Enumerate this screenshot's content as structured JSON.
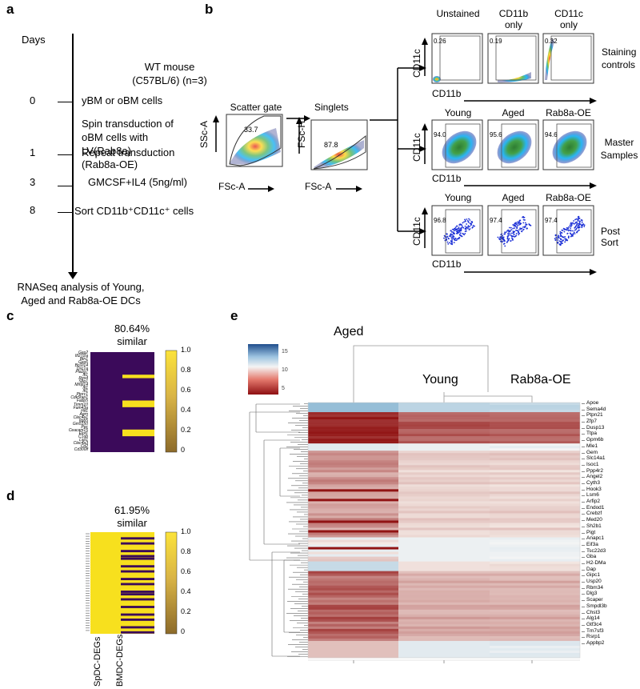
{
  "panel_labels": {
    "a": "a",
    "b": "b",
    "c": "c",
    "d": "d",
    "e": "e"
  },
  "panel_a": {
    "days_title": "Days",
    "timeline": [
      {
        "day": "",
        "text": "WT mouse\n(C57BL/6) (n=3)"
      },
      {
        "day": "0",
        "text": "yBM or oBM cells"
      },
      {
        "day": "",
        "text": "Spin transduction  of\noBM cells with\nLV(Rab8a)\n(Rab8a-OE)"
      },
      {
        "day": "1",
        "text": "Repeat transduction"
      },
      {
        "day": "3",
        "text": "GMCSF+IL4 (5ng/ml)"
      },
      {
        "day": "8",
        "text": "Sort CD11b⁺CD11c⁺ cells"
      }
    ],
    "footer": "RNASeq analysis of Young,\nAged and Rab8a-OE DCs"
  },
  "panel_b": {
    "scatter_gate": {
      "title": "Scatter gate",
      "value": "33.7",
      "ylabel": "SSc-A",
      "xlabel": "FSc-A"
    },
    "singlets": {
      "title": "Singlets",
      "value": "87.8",
      "ylabel": "FSc-H",
      "xlabel": "FSc-A"
    },
    "rows": [
      {
        "name": "Staining\ncontrols",
        "titles": [
          "Unstained",
          "CD11b\nonly",
          "CD11c\nonly"
        ],
        "values": [
          "0.26",
          "0.19",
          "0.32"
        ],
        "ylabel": "CD11c",
        "xlabel": "CD11b"
      },
      {
        "name": "Master\nSamples",
        "titles": [
          "Young",
          "Aged",
          "Rab8a-OE"
        ],
        "values": [
          "94.0",
          "95.6",
          "94.6"
        ],
        "ylabel": "CD11c",
        "xlabel": "CD11b"
      },
      {
        "name": "Post Sort",
        "titles": [
          "Young",
          "Aged",
          "Rab8a-OE"
        ],
        "values": [
          "96.8",
          "97.4",
          "97.4"
        ],
        "ylabel": "CD11c",
        "xlabel": "CD11b"
      }
    ]
  },
  "panel_c": {
    "similarity": "80.64%",
    "similar_label": "similar",
    "colorbar_ticks": [
      "1.0",
      "0.8",
      "0.6",
      "0.4",
      "0.2",
      "0"
    ],
    "genes": [
      "Gas2",
      "Ifi27l2a",
      "Btn1",
      "Gas6",
      "Bcl2l14",
      "Dsc1a",
      "Pla2g7",
      "Ifi1",
      "Rgs4",
      "Spp1",
      "Mmp14",
      "Ifi1",
      "Ifi1",
      "Ptprc1",
      "Cdk5rap1",
      "Fabp5",
      "Timm10",
      "Fam43a",
      "Hif1",
      "Agrn",
      "Clec4a1",
      "Itgb5",
      "Gm5150",
      "Ppc",
      "Ceacam15",
      "Elof1",
      "C1qb",
      "Lsp1",
      "Clec4a3",
      "Cd2",
      "Cd300lf"
    ],
    "bmdc_pattern": [
      0,
      0,
      0,
      0,
      0,
      0,
      0,
      1,
      0,
      0,
      0,
      0,
      0,
      0,
      0,
      1,
      1,
      0,
      0,
      0,
      0,
      0,
      0,
      0,
      1,
      1,
      0,
      0,
      0,
      0,
      0
    ]
  },
  "panel_d": {
    "similarity": "61.95%",
    "similar_label": "similar",
    "colorbar_ticks": [
      "1.0",
      "0.8",
      "0.6",
      "0.4",
      "0.2",
      "0"
    ],
    "xlabels": [
      "SpDC-DEGs",
      "BMDC-DEGs"
    ]
  },
  "panel_e": {
    "group_labels": [
      "Aged",
      "Young",
      "Rab8a-OE"
    ],
    "colorbar_ticks": [
      "15",
      "10",
      "5"
    ],
    "genes": [
      "Apoe",
      "Sema4d",
      "Ptpn21",
      "Zfp7",
      "Dusp13",
      "Ttpa",
      "Gpm6b",
      "Mle1",
      "Gem",
      "Slc14a1",
      "Isoc1",
      "Ppp4r2",
      "Angel2",
      "Cyth3",
      "Hook3",
      "Lsm6",
      "Arfip2",
      "Endod1",
      "Crebzf",
      "Med20",
      "Sh2b1",
      "Pigt",
      "Anapc1",
      "Eif3a",
      "Tsc22d3",
      "Gba",
      "H2-DMa",
      "Dap",
      "Gipc1",
      "Usp20",
      "Rbm34",
      "Dlg3",
      "Scaper",
      "Smpdl3b",
      "Chst3",
      "Alg14",
      "Gtf3c4",
      "Tm7sf3",
      "Rsrp1",
      "Appbp2"
    ]
  },
  "colors": {
    "heat_purple": "#3b0a5a",
    "heat_yellow": "#f7e01e",
    "red": "#9b1b1b",
    "blue": "#2a6496"
  }
}
